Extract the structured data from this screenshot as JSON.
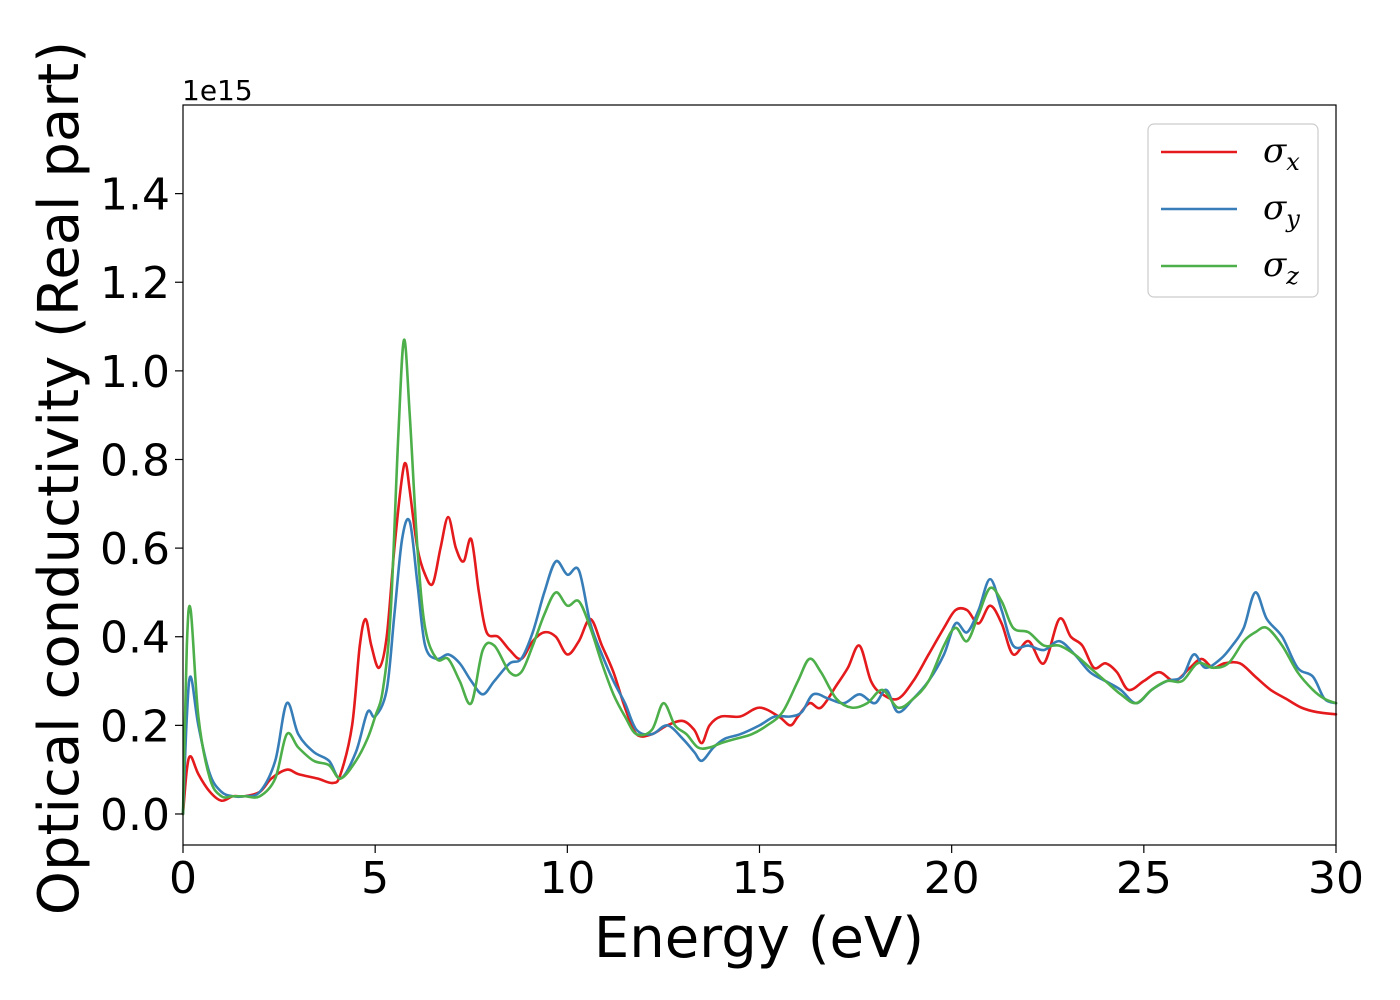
{
  "chart_data": {
    "type": "line",
    "xlabel": "Energy (eV)",
    "ylabel": "Optical conductivity (Real part)",
    "y_offset_label": "1e15",
    "xlim": [
      0,
      30
    ],
    "ylim": [
      -0.07,
      1.6
    ],
    "xticks": [
      0,
      5,
      10,
      15,
      20,
      25,
      30
    ],
    "xtick_labels": [
      "0",
      "5",
      "10",
      "15",
      "20",
      "25",
      "30"
    ],
    "yticks": [
      0.0,
      0.2,
      0.4,
      0.6,
      0.8,
      1.0,
      1.2,
      1.4
    ],
    "ytick_labels": [
      "0.0",
      "0.2",
      "0.4",
      "0.6",
      "0.8",
      "1.0",
      "1.2",
      "1.4"
    ],
    "grid": false,
    "legend_position": "top-right",
    "series": [
      {
        "name": "σ_x",
        "symbol": "σ",
        "subscript": "x",
        "color": "#e41a1c",
        "x": [
          0,
          0.1,
          0.2,
          0.4,
          0.7,
          1.0,
          1.3,
          1.6,
          2.0,
          2.3,
          2.7,
          3.0,
          3.5,
          3.9,
          4.1,
          4.4,
          4.6,
          4.75,
          4.9,
          5.1,
          5.3,
          5.5,
          5.7,
          5.8,
          5.9,
          6.1,
          6.3,
          6.5,
          6.7,
          6.9,
          7.1,
          7.3,
          7.5,
          7.7,
          7.9,
          8.2,
          8.5,
          8.8,
          9.1,
          9.4,
          9.7,
          10.0,
          10.3,
          10.6,
          10.9,
          11.2,
          11.5,
          11.8,
          12.2,
          12.6,
          13.0,
          13.3,
          13.5,
          13.7,
          14.0,
          14.5,
          15.0,
          15.5,
          15.8,
          16.0,
          16.3,
          16.6,
          17.0,
          17.3,
          17.6,
          17.9,
          18.2,
          18.6,
          19.0,
          19.4,
          19.8,
          20.1,
          20.4,
          20.7,
          21.0,
          21.3,
          21.6,
          22.0,
          22.4,
          22.8,
          23.1,
          23.4,
          23.7,
          24.0,
          24.3,
          24.6,
          25.0,
          25.4,
          25.8,
          26.2,
          26.5,
          26.8,
          27.1,
          27.5,
          27.9,
          28.3,
          28.7,
          29.1,
          29.5,
          30.0
        ],
        "y": [
          0.0,
          0.1,
          0.13,
          0.09,
          0.05,
          0.03,
          0.04,
          0.04,
          0.05,
          0.08,
          0.1,
          0.09,
          0.08,
          0.07,
          0.09,
          0.2,
          0.38,
          0.44,
          0.38,
          0.33,
          0.4,
          0.6,
          0.76,
          0.79,
          0.73,
          0.6,
          0.54,
          0.52,
          0.6,
          0.67,
          0.6,
          0.57,
          0.62,
          0.5,
          0.41,
          0.4,
          0.37,
          0.35,
          0.39,
          0.41,
          0.4,
          0.36,
          0.39,
          0.44,
          0.38,
          0.32,
          0.24,
          0.18,
          0.18,
          0.2,
          0.21,
          0.19,
          0.16,
          0.2,
          0.22,
          0.22,
          0.24,
          0.22,
          0.2,
          0.22,
          0.25,
          0.24,
          0.29,
          0.33,
          0.38,
          0.3,
          0.27,
          0.26,
          0.3,
          0.36,
          0.42,
          0.46,
          0.46,
          0.43,
          0.47,
          0.43,
          0.36,
          0.39,
          0.34,
          0.44,
          0.4,
          0.38,
          0.33,
          0.34,
          0.32,
          0.28,
          0.3,
          0.32,
          0.3,
          0.33,
          0.35,
          0.33,
          0.34,
          0.34,
          0.31,
          0.28,
          0.26,
          0.24,
          0.23,
          0.225
        ]
      },
      {
        "name": "σ_y",
        "symbol": "σ",
        "subscript": "y",
        "color": "#377eb8",
        "x": [
          0,
          0.1,
          0.2,
          0.4,
          0.7,
          1.0,
          1.3,
          1.6,
          2.0,
          2.4,
          2.7,
          3.0,
          3.4,
          3.8,
          4.1,
          4.5,
          4.8,
          5.0,
          5.3,
          5.5,
          5.7,
          5.9,
          6.1,
          6.3,
          6.6,
          6.9,
          7.2,
          7.5,
          7.8,
          8.1,
          8.5,
          8.8,
          9.1,
          9.4,
          9.7,
          10.0,
          10.3,
          10.6,
          10.9,
          11.2,
          11.5,
          11.8,
          12.2,
          12.6,
          13.0,
          13.3,
          13.5,
          13.8,
          14.1,
          14.5,
          15.0,
          15.4,
          15.8,
          16.1,
          16.4,
          16.8,
          17.2,
          17.6,
          18.0,
          18.3,
          18.6,
          19.0,
          19.4,
          19.8,
          20.1,
          20.4,
          20.7,
          21.0,
          21.3,
          21.6,
          22.0,
          22.4,
          22.8,
          23.2,
          23.6,
          24.0,
          24.4,
          24.8,
          25.2,
          25.6,
          26.0,
          26.3,
          26.6,
          27.0,
          27.3,
          27.6,
          27.9,
          28.2,
          28.6,
          29.0,
          29.4,
          29.7,
          30.0
        ],
        "y": [
          0.0,
          0.22,
          0.31,
          0.2,
          0.09,
          0.05,
          0.04,
          0.04,
          0.05,
          0.12,
          0.25,
          0.18,
          0.14,
          0.12,
          0.08,
          0.14,
          0.23,
          0.22,
          0.28,
          0.45,
          0.62,
          0.66,
          0.52,
          0.38,
          0.35,
          0.36,
          0.34,
          0.3,
          0.27,
          0.3,
          0.34,
          0.35,
          0.41,
          0.5,
          0.57,
          0.54,
          0.55,
          0.43,
          0.36,
          0.3,
          0.25,
          0.19,
          0.18,
          0.2,
          0.17,
          0.14,
          0.12,
          0.15,
          0.17,
          0.18,
          0.2,
          0.22,
          0.22,
          0.23,
          0.27,
          0.26,
          0.25,
          0.27,
          0.25,
          0.28,
          0.23,
          0.26,
          0.3,
          0.36,
          0.43,
          0.41,
          0.46,
          0.53,
          0.46,
          0.38,
          0.38,
          0.37,
          0.39,
          0.36,
          0.32,
          0.3,
          0.28,
          0.25,
          0.28,
          0.3,
          0.31,
          0.36,
          0.33,
          0.35,
          0.38,
          0.42,
          0.5,
          0.44,
          0.4,
          0.33,
          0.31,
          0.26,
          0.25
        ]
      },
      {
        "name": "σ_z",
        "symbol": "σ",
        "subscript": "z",
        "color": "#4daf4a",
        "x": [
          0,
          0.1,
          0.2,
          0.4,
          0.7,
          1.0,
          1.3,
          1.6,
          2.0,
          2.4,
          2.7,
          3.0,
          3.4,
          3.8,
          4.1,
          4.5,
          4.8,
          5.0,
          5.2,
          5.4,
          5.6,
          5.75,
          5.9,
          6.1,
          6.3,
          6.6,
          6.9,
          7.2,
          7.5,
          7.8,
          8.1,
          8.5,
          8.8,
          9.1,
          9.4,
          9.7,
          10.0,
          10.3,
          10.6,
          10.9,
          11.2,
          11.5,
          11.8,
          12.2,
          12.5,
          12.8,
          13.1,
          13.4,
          13.7,
          14.0,
          14.4,
          14.8,
          15.2,
          15.6,
          16.0,
          16.3,
          16.6,
          17.0,
          17.4,
          17.8,
          18.2,
          18.6,
          19.0,
          19.4,
          19.8,
          20.1,
          20.4,
          20.7,
          21.0,
          21.3,
          21.6,
          22.0,
          22.4,
          22.8,
          23.2,
          23.6,
          24.0,
          24.4,
          24.8,
          25.2,
          25.6,
          26.0,
          26.4,
          26.8,
          27.2,
          27.6,
          27.9,
          28.2,
          28.6,
          29.0,
          29.4,
          29.7,
          30.0
        ],
        "y": [
          0.0,
          0.38,
          0.46,
          0.22,
          0.08,
          0.04,
          0.04,
          0.04,
          0.04,
          0.08,
          0.18,
          0.15,
          0.12,
          0.11,
          0.08,
          0.12,
          0.17,
          0.22,
          0.28,
          0.45,
          0.85,
          1.07,
          0.9,
          0.6,
          0.42,
          0.35,
          0.35,
          0.3,
          0.25,
          0.37,
          0.38,
          0.32,
          0.32,
          0.38,
          0.45,
          0.5,
          0.47,
          0.48,
          0.42,
          0.34,
          0.27,
          0.22,
          0.18,
          0.19,
          0.25,
          0.2,
          0.18,
          0.15,
          0.15,
          0.16,
          0.17,
          0.18,
          0.2,
          0.23,
          0.3,
          0.35,
          0.32,
          0.26,
          0.24,
          0.25,
          0.28,
          0.24,
          0.26,
          0.3,
          0.38,
          0.42,
          0.39,
          0.45,
          0.51,
          0.48,
          0.42,
          0.41,
          0.38,
          0.38,
          0.36,
          0.33,
          0.3,
          0.27,
          0.25,
          0.28,
          0.3,
          0.3,
          0.34,
          0.33,
          0.34,
          0.39,
          0.41,
          0.42,
          0.38,
          0.32,
          0.28,
          0.26,
          0.25
        ]
      }
    ]
  }
}
